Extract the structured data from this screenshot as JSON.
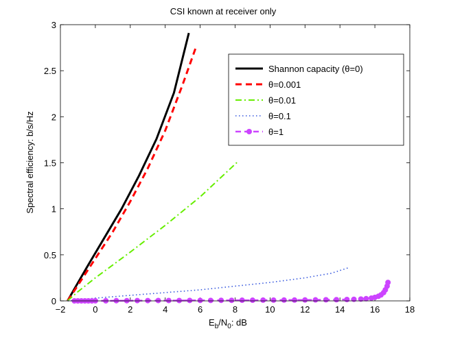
{
  "chart_data": {
    "type": "line",
    "title": "CSI known at receiver only",
    "xlabel": {
      "main": "E",
      "sub1": "b",
      "mid": "/N",
      "sub2": "0",
      "tail": ": dB"
    },
    "ylabel": "Spectral efficiency: b/s/Hz",
    "xlim": [
      -2,
      18
    ],
    "ylim": [
      0,
      3
    ],
    "xticks": [
      -2,
      0,
      2,
      4,
      6,
      8,
      10,
      12,
      14,
      16,
      18
    ],
    "xtick_labels": [
      "−2",
      "0",
      "2",
      "4",
      "6",
      "8",
      "10",
      "12",
      "14",
      "16",
      "18"
    ],
    "yticks": [
      0,
      0.5,
      1,
      1.5,
      2,
      2.5,
      3
    ],
    "ytick_labels": [
      "0",
      "0.5",
      "1",
      "1.5",
      "2",
      "2.5",
      "3"
    ],
    "grid": false,
    "legend_position": "top-right",
    "series": [
      {
        "name": "Shannon capacity (θ=0)",
        "color": "#000000",
        "style": "solid",
        "x": [
          -1.59,
          -1.2,
          -0.5,
          0.5,
          1.5,
          2.5,
          3.5,
          4.5,
          5.35
        ],
        "y": [
          0,
          0.13,
          0.36,
          0.68,
          1.0,
          1.36,
          1.76,
          2.26,
          2.91
        ]
      },
      {
        "name": "θ=0.001",
        "color": "#ff0000",
        "style": "dashed",
        "x": [
          -1.59,
          -1.0,
          0,
          1,
          2,
          3,
          4,
          5,
          5.75
        ],
        "y": [
          0,
          0.17,
          0.46,
          0.75,
          1.08,
          1.44,
          1.85,
          2.35,
          2.75
        ]
      },
      {
        "name": "θ=0.01",
        "color": "#66ee00",
        "style": "dashdot",
        "x": [
          -1.59,
          -1.0,
          0,
          2,
          4,
          6,
          8.2
        ],
        "y": [
          0,
          0.1,
          0.25,
          0.53,
          0.82,
          1.13,
          1.52
        ]
      },
      {
        "name": "θ=0.1",
        "color": "#3355dd",
        "style": "dotted",
        "x": [
          -1.59,
          0,
          2,
          4,
          6,
          8,
          10,
          12,
          13.5,
          14.5
        ],
        "y": [
          0,
          0.03,
          0.06,
          0.09,
          0.12,
          0.16,
          0.2,
          0.25,
          0.3,
          0.36
        ]
      },
      {
        "name": "θ=1",
        "color": "#cc44ff",
        "style": "dashed-marker",
        "x": [
          -1.2,
          -1.0,
          -0.8,
          -0.6,
          -0.4,
          -0.2,
          0.0,
          0.6,
          1.2,
          1.8,
          2.4,
          3.0,
          3.6,
          4.2,
          4.8,
          5.4,
          6.0,
          6.6,
          7.2,
          7.8,
          8.4,
          9.0,
          9.6,
          10.2,
          10.8,
          11.4,
          12.0,
          12.6,
          13.2,
          13.8,
          14.4,
          14.8,
          15.2,
          15.5,
          15.8,
          16.0,
          16.2,
          16.35,
          16.5,
          16.6,
          16.7,
          16.75
        ],
        "y": [
          0,
          0,
          0,
          0,
          0,
          0,
          0.001,
          0.001,
          0.002,
          0.002,
          0.003,
          0.003,
          0.004,
          0.004,
          0.004,
          0.005,
          0.005,
          0.005,
          0.006,
          0.006,
          0.007,
          0.007,
          0.008,
          0.008,
          0.009,
          0.009,
          0.01,
          0.011,
          0.012,
          0.013,
          0.015,
          0.017,
          0.02,
          0.024,
          0.03,
          0.038,
          0.05,
          0.065,
          0.09,
          0.12,
          0.16,
          0.2
        ]
      }
    ]
  }
}
